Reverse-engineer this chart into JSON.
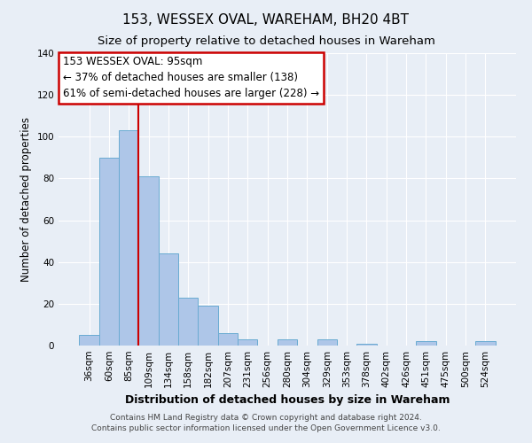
{
  "title": "153, WESSEX OVAL, WAREHAM, BH20 4BT",
  "subtitle": "Size of property relative to detached houses in Wareham",
  "xlabel": "Distribution of detached houses by size in Wareham",
  "ylabel": "Number of detached properties",
  "bar_labels": [
    "36sqm",
    "60sqm",
    "85sqm",
    "109sqm",
    "134sqm",
    "158sqm",
    "182sqm",
    "207sqm",
    "231sqm",
    "256sqm",
    "280sqm",
    "304sqm",
    "329sqm",
    "353sqm",
    "378sqm",
    "402sqm",
    "426sqm",
    "451sqm",
    "475sqm",
    "500sqm",
    "524sqm"
  ],
  "bar_values": [
    5,
    90,
    103,
    81,
    44,
    23,
    19,
    6,
    3,
    0,
    3,
    0,
    3,
    0,
    1,
    0,
    0,
    2,
    0,
    0,
    2
  ],
  "bar_color": "#aec6e8",
  "bar_edge_color": "#6aabd2",
  "vline_color": "#cc0000",
  "vline_x_index": 2,
  "ylim": [
    0,
    140
  ],
  "yticks": [
    0,
    20,
    40,
    60,
    80,
    100,
    120,
    140
  ],
  "annotation_title": "153 WESSEX OVAL: 95sqm",
  "annotation_line1": "← 37% of detached houses are smaller (138)",
  "annotation_line2": "61% of semi-detached houses are larger (228) →",
  "annotation_box_facecolor": "white",
  "annotation_box_edgecolor": "#cc0000",
  "footer1": "Contains HM Land Registry data © Crown copyright and database right 2024.",
  "footer2": "Contains public sector information licensed under the Open Government Licence v3.0.",
  "bg_color": "#e8eef6",
  "plot_bg_color": "#e8eef6",
  "grid_color": "white",
  "title_fontsize": 11,
  "subtitle_fontsize": 9.5,
  "xlabel_fontsize": 9,
  "ylabel_fontsize": 8.5,
  "tick_fontsize": 7.5,
  "annotation_fontsize": 8.5,
  "footer_fontsize": 6.5
}
